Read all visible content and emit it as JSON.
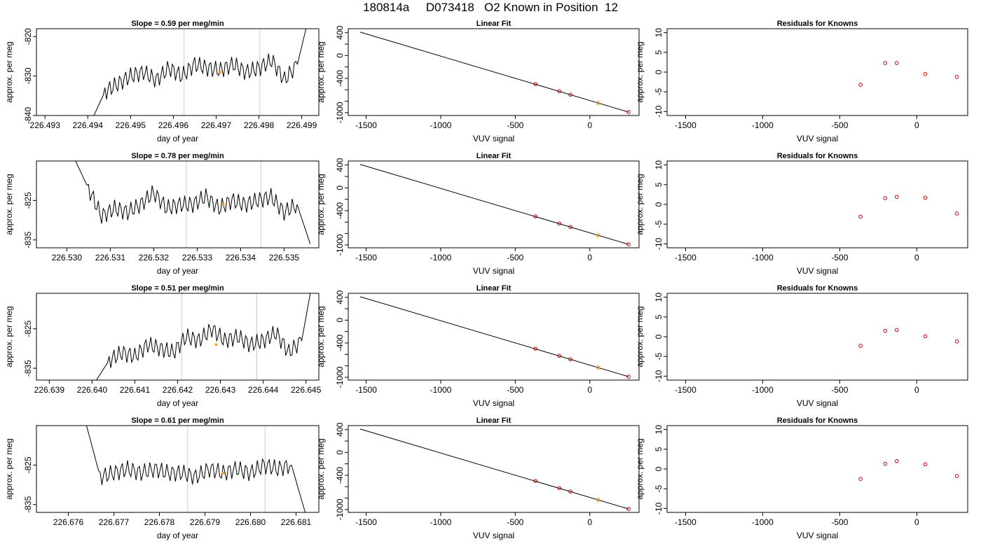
{
  "page": {
    "title": "180814a     D073418   O2 Known in Position  12"
  },
  "colors": {
    "trace": "#000000",
    "marker_orange": "#ffa500",
    "marker_red": "#cc0000",
    "vline": "#cccccc",
    "frame": "#000000"
  },
  "chart_data": [
    {
      "type": "line",
      "row": 1,
      "column": "trace",
      "title": "Slope =  0.59  per meg/min",
      "xlabel": "day of year",
      "ylabel": "approx. per meg",
      "xlim": [
        226.4928,
        226.4994
      ],
      "ylim": [
        -840,
        -818
      ],
      "xticks": [
        "226.493",
        "226.494",
        "226.495",
        "226.496",
        "226.497",
        "226.498",
        "226.499"
      ],
      "yticks": [
        "-840",
        "-830",
        "-820"
      ],
      "vlines": [
        226.49625,
        226.49802
      ],
      "marker": {
        "x": 226.4971,
        "y": -829
      },
      "series": [
        {
          "x": [
            226.4941,
            226.4944,
            226.4947,
            226.495,
            226.4953,
            226.4956,
            226.4959,
            226.4962,
            226.4965,
            226.4968,
            226.4971,
            226.4974,
            226.4977,
            226.498,
            226.4983,
            226.4986,
            226.4989,
            226.4991
          ],
          "y": [
            -841,
            -834,
            -832,
            -830,
            -829,
            -831,
            -828,
            -830,
            -827,
            -828,
            -828.5,
            -827,
            -829,
            -828,
            -826,
            -831,
            -827,
            -818
          ]
        }
      ]
    },
    {
      "type": "line",
      "row": 1,
      "column": "fit",
      "title": "Linear Fit",
      "xlabel": "VUV signal",
      "ylabel": "approx. per meg",
      "xlim": [
        -1620,
        330
      ],
      "ylim": [
        -1050,
        470
      ],
      "xticks": [
        "-1500",
        "-1000",
        "-500",
        "0"
      ],
      "yticks": [
        "-1000",
        "-800",
        "-600",
        "-400",
        "-200",
        "0",
        "200",
        "400"
      ],
      "yticklabels": [
        "-1000",
        "",
        "",
        "-400",
        "",
        "0",
        "",
        "400"
      ],
      "line": {
        "x": [
          -1540,
          260
        ],
        "y": [
          410,
          -990
        ]
      },
      "points": [
        {
          "x": -365,
          "y": -500
        },
        {
          "x": -205,
          "y": -625
        },
        {
          "x": -130,
          "y": -685
        },
        {
          "x": 260,
          "y": -990
        }
      ],
      "known_point": {
        "x": 55,
        "y": -830
      }
    },
    {
      "type": "scatter",
      "row": 1,
      "column": "residuals",
      "title": "Residuals for Knowns",
      "xlabel": "VUV signal",
      "ylabel": "approx. per meg",
      "xlim": [
        -1620,
        330
      ],
      "ylim": [
        -11,
        11
      ],
      "xticks": [
        "-1500",
        "-1000",
        "-500",
        "0"
      ],
      "yticks": [
        "-10",
        "-5",
        "0",
        "5",
        "10"
      ],
      "points": [
        {
          "x": -365,
          "y": -3.2
        },
        {
          "x": -205,
          "y": 2.3
        },
        {
          "x": -130,
          "y": 2.3
        },
        {
          "x": 55,
          "y": -0.5
        },
        {
          "x": 260,
          "y": -1.2
        }
      ]
    },
    {
      "type": "line",
      "row": 2,
      "column": "trace",
      "title": "Slope =  0.78  per meg/min",
      "xlabel": "day of year",
      "ylabel": "approx. per meg",
      "xlim": [
        226.5293,
        226.5358
      ],
      "ylim": [
        -837,
        -815
      ],
      "xticks": [
        "226.530",
        "226.531",
        "226.532",
        "226.533",
        "226.534",
        "226.535"
      ],
      "yticks": [
        "-835",
        "-825"
      ],
      "vlines": [
        226.53275,
        226.53447
      ],
      "marker": {
        "x": 226.5336,
        "y": -826
      },
      "series": [
        {
          "x": [
            226.5302,
            226.5305,
            226.5308,
            226.5311,
            226.5314,
            226.5317,
            226.532,
            226.5323,
            226.5326,
            226.5329,
            226.5332,
            226.5335,
            226.5338,
            226.5341,
            226.5344,
            226.5347,
            226.535,
            226.5353,
            226.5356
          ],
          "y": [
            -815,
            -822,
            -829,
            -827,
            -828,
            -826,
            -823,
            -827,
            -826,
            -826,
            -824,
            -827,
            -825,
            -826,
            -825,
            -824,
            -828,
            -826,
            -836
          ]
        }
      ]
    },
    {
      "type": "line",
      "row": 2,
      "column": "fit",
      "title": "Linear Fit",
      "xlabel": "VUV signal",
      "ylabel": "approx. per meg",
      "xlim": [
        -1620,
        330
      ],
      "ylim": [
        -1050,
        470
      ],
      "xticks": [
        "-1500",
        "-1000",
        "-500",
        "0"
      ],
      "yticks": [
        "-1000",
        "-800",
        "-600",
        "-400",
        "-200",
        "0",
        "200",
        "400"
      ],
      "yticklabels": [
        "-1000",
        "",
        "",
        "-400",
        "",
        "0",
        "",
        "400"
      ],
      "line": {
        "x": [
          -1540,
          260
        ],
        "y": [
          410,
          -990
        ]
      },
      "points": [
        {
          "x": -365,
          "y": -500
        },
        {
          "x": -205,
          "y": -625
        },
        {
          "x": -130,
          "y": -685
        },
        {
          "x": 260,
          "y": -990
        }
      ],
      "known_point": {
        "x": 55,
        "y": -830
      }
    },
    {
      "type": "scatter",
      "row": 2,
      "column": "residuals",
      "title": "Residuals for Knowns",
      "xlabel": "VUV signal",
      "ylabel": "approx. per meg",
      "xlim": [
        -1620,
        330
      ],
      "ylim": [
        -11,
        11
      ],
      "xticks": [
        "-1500",
        "-1000",
        "-500",
        "0"
      ],
      "yticks": [
        "-10",
        "-5",
        "0",
        "5",
        "10"
      ],
      "points": [
        {
          "x": -365,
          "y": -3.1
        },
        {
          "x": -205,
          "y": 1.6
        },
        {
          "x": -130,
          "y": 1.9
        },
        {
          "x": 55,
          "y": 1.7
        },
        {
          "x": 260,
          "y": -2.3
        }
      ]
    },
    {
      "type": "line",
      "row": 3,
      "column": "trace",
      "title": "Slope =  0.51  per meg/min",
      "xlabel": "day of year",
      "ylabel": "approx. per meg",
      "xlim": [
        226.6387,
        226.6453
      ],
      "ylim": [
        -838,
        -816
      ],
      "xticks": [
        "226.639",
        "226.640",
        "226.641",
        "226.642",
        "226.643",
        "226.644",
        "226.645"
      ],
      "yticks": [
        "-835",
        "-825"
      ],
      "vlines": [
        226.6421,
        226.64385
      ],
      "marker": {
        "x": 226.6429,
        "y": -829
      },
      "series": [
        {
          "x": [
            226.6401,
            226.6404,
            226.6407,
            226.641,
            226.6413,
            226.6416,
            226.6419,
            226.6422,
            226.6425,
            226.6428,
            226.6431,
            226.6434,
            226.6437,
            226.644,
            226.6443,
            226.6446,
            226.6449,
            226.6451
          ],
          "y": [
            -838,
            -833,
            -831,
            -832,
            -829,
            -830,
            -831,
            -827,
            -828,
            -825,
            -828,
            -827,
            -829,
            -828,
            -826,
            -831,
            -828,
            -816
          ]
        }
      ]
    },
    {
      "type": "line",
      "row": 3,
      "column": "fit",
      "title": "Linear Fit",
      "xlabel": "VUV signal",
      "ylabel": "approx. per meg",
      "xlim": [
        -1620,
        330
      ],
      "ylim": [
        -1050,
        470
      ],
      "xticks": [
        "-1500",
        "-1000",
        "-500",
        "0"
      ],
      "yticks": [
        "-1000",
        "-800",
        "-600",
        "-400",
        "-200",
        "0",
        "200",
        "400"
      ],
      "yticklabels": [
        "-1000",
        "",
        "",
        "-400",
        "",
        "0",
        "",
        "400"
      ],
      "line": {
        "x": [
          -1540,
          260
        ],
        "y": [
          410,
          -990
        ]
      },
      "points": [
        {
          "x": -365,
          "y": -500
        },
        {
          "x": -205,
          "y": -625
        },
        {
          "x": -130,
          "y": -685
        },
        {
          "x": 260,
          "y": -990
        }
      ],
      "known_point": {
        "x": 55,
        "y": -830
      }
    },
    {
      "type": "scatter",
      "row": 3,
      "column": "residuals",
      "title": "Residuals for Knowns",
      "xlabel": "VUV signal",
      "ylabel": "approx. per meg",
      "xlim": [
        -1620,
        330
      ],
      "ylim": [
        -11,
        11
      ],
      "xticks": [
        "-1500",
        "-1000",
        "-500",
        "0"
      ],
      "yticks": [
        "-10",
        "-5",
        "0",
        "5",
        "10"
      ],
      "points": [
        {
          "x": -365,
          "y": -2.3
        },
        {
          "x": -205,
          "y": 1.5
        },
        {
          "x": -130,
          "y": 1.7
        },
        {
          "x": 55,
          "y": 0.1
        },
        {
          "x": 260,
          "y": -1.2
        }
      ]
    },
    {
      "type": "line",
      "row": 4,
      "column": "trace",
      "title": "Slope =  0.61  per meg/min",
      "xlabel": "day of year",
      "ylabel": "approx. per meg",
      "xlim": [
        226.6753,
        226.6815
      ],
      "ylim": [
        -837,
        -815
      ],
      "xticks": [
        "226.676",
        "226.677",
        "226.678",
        "226.679",
        "226.680",
        "226.681"
      ],
      "yticks": [
        "-835",
        "-825"
      ],
      "vlines": [
        226.67862,
        226.68032
      ],
      "marker": {
        "x": 226.6794,
        "y": -827
      },
      "series": [
        {
          "x": [
            226.6764,
            226.6767,
            226.677,
            226.6773,
            226.6776,
            226.6779,
            226.6782,
            226.6785,
            226.6788,
            226.6791,
            226.6794,
            226.6797,
            226.68,
            226.6803,
            226.6806,
            226.6809,
            226.6812
          ],
          "y": [
            -815,
            -828,
            -827,
            -826,
            -827,
            -826,
            -827,
            -827,
            -828,
            -826,
            -827,
            -826,
            -827,
            -825,
            -826,
            -825,
            -837
          ]
        }
      ]
    },
    {
      "type": "line",
      "row": 4,
      "column": "fit",
      "title": "Linear Fit",
      "xlabel": "VUV signal",
      "ylabel": "approx. per meg",
      "xlim": [
        -1620,
        330
      ],
      "ylim": [
        -1050,
        470
      ],
      "xticks": [
        "-1500",
        "-1000",
        "-500",
        "0"
      ],
      "yticks": [
        "-1000",
        "-800",
        "-600",
        "-400",
        "-200",
        "0",
        "200",
        "400"
      ],
      "yticklabels": [
        "-1000",
        "",
        "",
        "-400",
        "",
        "0",
        "",
        "400"
      ],
      "line": {
        "x": [
          -1540,
          260
        ],
        "y": [
          410,
          -990
        ]
      },
      "points": [
        {
          "x": -365,
          "y": -500
        },
        {
          "x": -205,
          "y": -625
        },
        {
          "x": -130,
          "y": -685
        },
        {
          "x": 260,
          "y": -990
        }
      ],
      "known_point": {
        "x": 55,
        "y": -830
      }
    },
    {
      "type": "scatter",
      "row": 4,
      "column": "residuals",
      "title": "Residuals for Knowns",
      "xlabel": "VUV signal",
      "ylabel": "approx. per meg",
      "xlim": [
        -1620,
        330
      ],
      "ylim": [
        -11,
        11
      ],
      "xticks": [
        "-1500",
        "-1000",
        "-500",
        "0"
      ],
      "yticks": [
        "-10",
        "-5",
        "0",
        "5",
        "10"
      ],
      "points": [
        {
          "x": -365,
          "y": -2.5
        },
        {
          "x": -205,
          "y": 1.3
        },
        {
          "x": -130,
          "y": 2.0
        },
        {
          "x": 55,
          "y": 1.2
        },
        {
          "x": 260,
          "y": -1.8
        }
      ]
    }
  ]
}
